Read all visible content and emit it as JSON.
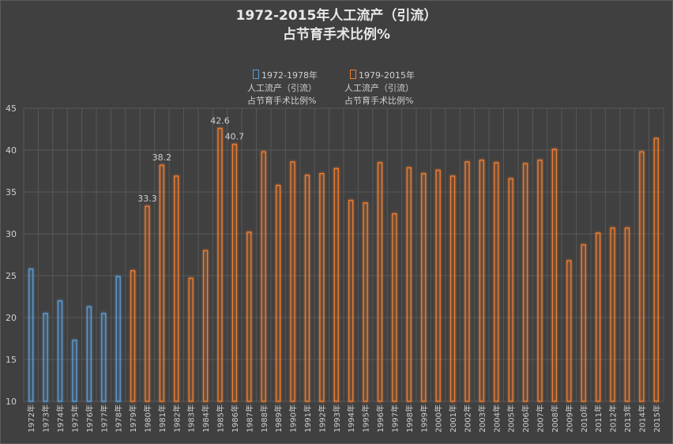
{
  "chart_data": {
    "type": "bar",
    "title_lines": [
      "1972-2015年人工流产（引流）",
      "占节育手术比例%"
    ],
    "categories": [
      "1972年",
      "1973年",
      "1974年",
      "1975年",
      "1976年",
      "1977年",
      "1978年",
      "1979年",
      "1980年",
      "1981年",
      "1982年",
      "1983年",
      "1984年",
      "1985年",
      "1986年",
      "1987年",
      "1988年",
      "1989年",
      "1990年",
      "1991年",
      "1992年",
      "1993年",
      "1994年",
      "1995年",
      "1996年",
      "1997年",
      "1998年",
      "1999年",
      "2000年",
      "2001年",
      "2002年",
      "2003年",
      "2004年",
      "2005年",
      "2006年",
      "2007年",
      "2008年",
      "2009年",
      "2010年",
      "2011年",
      "2012年",
      "2013年",
      "2014年",
      "2015年"
    ],
    "series": [
      {
        "name": "1972-1978年\n人工流产（引流）\n占节育手术比例%",
        "color": "#5b9bd5",
        "values": [
          25.8,
          20.5,
          22.0,
          17.3,
          21.3,
          20.5,
          24.9,
          null,
          null,
          null,
          null,
          null,
          null,
          null,
          null,
          null,
          null,
          null,
          null,
          null,
          null,
          null,
          null,
          null,
          null,
          null,
          null,
          null,
          null,
          null,
          null,
          null,
          null,
          null,
          null,
          null,
          null,
          null,
          null,
          null,
          null,
          null,
          null,
          null
        ]
      },
      {
        "name": "1979-2015年\n人工流产（引流）\n占节育手术比例%",
        "color": "#ed7d31",
        "values": [
          null,
          null,
          null,
          null,
          null,
          null,
          null,
          25.6,
          33.3,
          38.2,
          36.9,
          24.7,
          28.0,
          42.6,
          40.7,
          30.2,
          39.8,
          35.8,
          38.6,
          37.0,
          37.2,
          37.8,
          34.0,
          33.7,
          38.5,
          32.4,
          37.9,
          37.2,
          37.6,
          36.9,
          38.6,
          38.8,
          38.5,
          36.6,
          38.4,
          38.8,
          40.1,
          26.8,
          28.7,
          30.1,
          30.7,
          30.7,
          39.8,
          41.4
        ]
      }
    ],
    "data_labels": [
      {
        "category": "1980年",
        "text": "33.3"
      },
      {
        "category": "1981年",
        "text": "38.2"
      },
      {
        "category": "1985年",
        "text": "42.6"
      },
      {
        "category": "1986年",
        "text": "40.7"
      }
    ],
    "ylim": [
      10,
      45
    ],
    "yticks": [
      10,
      15,
      20,
      25,
      30,
      35,
      40,
      45
    ],
    "grid": true,
    "legend_position": "top"
  }
}
